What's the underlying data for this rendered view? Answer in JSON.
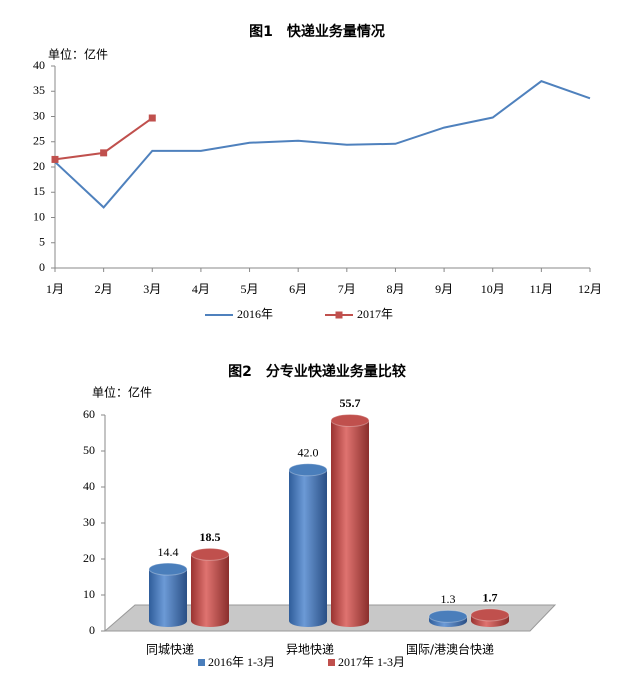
{
  "chart_data": [
    {
      "type": "line",
      "title": "图1　快递业务量情况",
      "y_label": "单位：亿件",
      "categories": [
        "1月",
        "2月",
        "3月",
        "4月",
        "5月",
        "6月",
        "7月",
        "8月",
        "9月",
        "10月",
        "11月",
        "12月"
      ],
      "series": [
        {
          "name": "2016年",
          "color": "#4f81bd",
          "values": [
            21,
            12,
            23.2,
            23.2,
            24.8,
            25.2,
            24.4,
            24.6,
            27.8,
            29.8,
            37,
            33.6
          ]
        },
        {
          "name": "2017年",
          "color": "#c0504d",
          "values": [
            21.5,
            22.8,
            29.7,
            null,
            null,
            null,
            null,
            null,
            null,
            null,
            null,
            null
          ]
        }
      ],
      "ylim": [
        0,
        40
      ],
      "yticks": [
        0,
        5,
        10,
        15,
        20,
        25,
        30,
        35,
        40
      ]
    },
    {
      "type": "bar3d",
      "title": "图2　分专业快递业务量比较",
      "y_label": "单位：亿件",
      "categories": [
        "同城快递",
        "异地快递",
        "国际/港澳台快递"
      ],
      "series": [
        {
          "name": "2016年 1-3月",
          "color": "#4a7ebb",
          "values": [
            14.4,
            42.0,
            1.3
          ],
          "value_labels": [
            "14.4",
            "42.0",
            "1.3"
          ]
        },
        {
          "name": "2017年 1-3月",
          "color": "#c0504d",
          "values": [
            18.5,
            55.7,
            1.7
          ],
          "value_labels": [
            "18.5",
            "55.7",
            "1.7"
          ]
        }
      ],
      "ylim": [
        0,
        60
      ],
      "yticks": [
        0,
        10,
        20,
        30,
        40,
        50,
        60
      ]
    }
  ]
}
